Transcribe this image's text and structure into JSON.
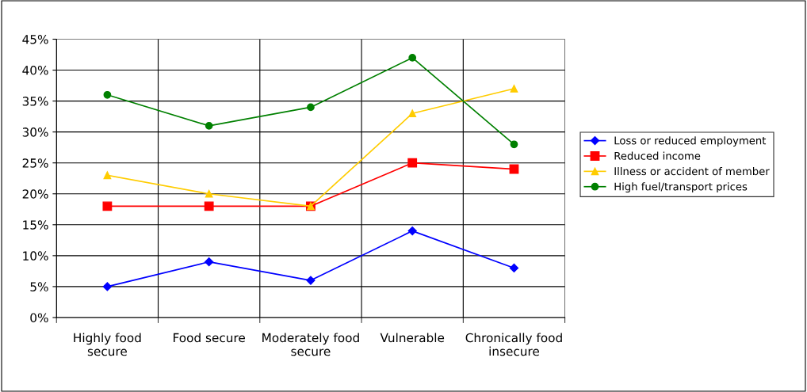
{
  "chart_data": {
    "type": "line",
    "categories": [
      "Highly food\nsecure",
      "Food secure",
      "Moderately food\nsecure",
      "Vulnerable",
      "Chronically food\ninsecure"
    ],
    "series": [
      {
        "name": "Loss or reduced employment",
        "color": "#0000ff",
        "marker": "diamond",
        "values": [
          5,
          9,
          6,
          14,
          8
        ]
      },
      {
        "name": "Reduced income",
        "color": "#ff0000",
        "marker": "square",
        "values": [
          18,
          18,
          18,
          25,
          24
        ]
      },
      {
        "name": "Illness or accident of member",
        "color": "#ffcc00",
        "marker": "triangle",
        "values": [
          23,
          20,
          18,
          33,
          37
        ]
      },
      {
        "name": "High fuel/transport prices",
        "color": "#008000",
        "marker": "circle",
        "values": [
          36,
          31,
          34,
          42,
          28
        ]
      }
    ],
    "ylim": [
      0,
      45
    ],
    "yticks": [
      {
        "value": 0,
        "label": "0%"
      },
      {
        "value": 5,
        "label": "5%"
      },
      {
        "value": 10,
        "label": "10%"
      },
      {
        "value": 15,
        "label": "15%"
      },
      {
        "value": 20,
        "label": "20%"
      },
      {
        "value": 25,
        "label": "25%"
      },
      {
        "value": 30,
        "label": "30%"
      },
      {
        "value": 35,
        "label": "35%"
      },
      {
        "value": 40,
        "label": "40%"
      },
      {
        "value": 45,
        "label": "45%"
      }
    ],
    "grid": true,
    "legend": "right"
  }
}
